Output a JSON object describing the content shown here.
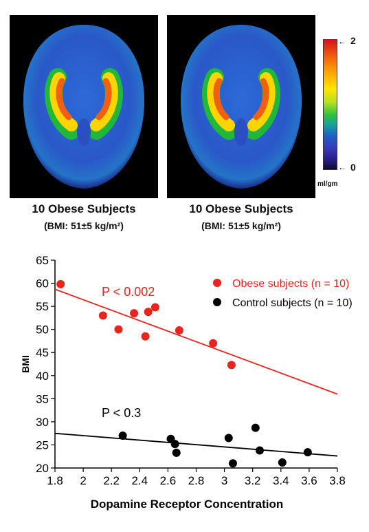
{
  "panels": [
    {
      "caption": "10 Obese Subjects",
      "bmi": "(BMI: 51±5 kg/m²)"
    },
    {
      "caption": "10 Obese Subjects",
      "bmi": "(BMI: 51±5 kg/m²)"
    }
  ],
  "colorbar": {
    "max": "2",
    "min": "0",
    "unit": "ml/gm"
  },
  "chart_data": {
    "type": "scatter",
    "xlabel": "Dopamine Receptor Concentration",
    "ylabel": "BMI",
    "xlim": [
      1.8,
      3.8
    ],
    "ylim": [
      20,
      65
    ],
    "xticks": [
      "1.8",
      "2",
      "2.2",
      "2.4",
      "2.6",
      "2.8",
      "3",
      "3.2",
      "3.4",
      "3.6",
      "3.8"
    ],
    "yticks": [
      "20",
      "25",
      "30",
      "35",
      "40",
      "45",
      "50",
      "55",
      "60",
      "65"
    ],
    "grid": false,
    "legend": "top-right",
    "series": [
      {
        "name": "Obese subjects (n = 10)",
        "color": "#e8241c",
        "pvalue": "P < 0.002",
        "x": [
          1.84,
          2.14,
          2.25,
          2.36,
          2.44,
          2.46,
          2.51,
          2.68,
          2.92,
          3.05
        ],
        "y": [
          59.8,
          53.0,
          50.0,
          53.5,
          48.5,
          53.8,
          54.8,
          49.8,
          47.0,
          42.3
        ],
        "fit": [
          [
            1.8,
            58.7
          ],
          [
            3.8,
            36.0
          ]
        ]
      },
      {
        "name": "Control subjects (n = 10)",
        "color": "#000000",
        "pvalue": "P < 0.3",
        "x": [
          2.28,
          2.62,
          2.65,
          2.66,
          3.03,
          3.06,
          3.22,
          3.25,
          3.41,
          3.59
        ],
        "y": [
          27.0,
          26.3,
          25.2,
          23.3,
          26.5,
          21.0,
          28.7,
          23.8,
          21.2,
          23.4
        ],
        "fit": [
          [
            1.8,
            27.5
          ],
          [
            3.8,
            22.6
          ]
        ]
      }
    ]
  }
}
